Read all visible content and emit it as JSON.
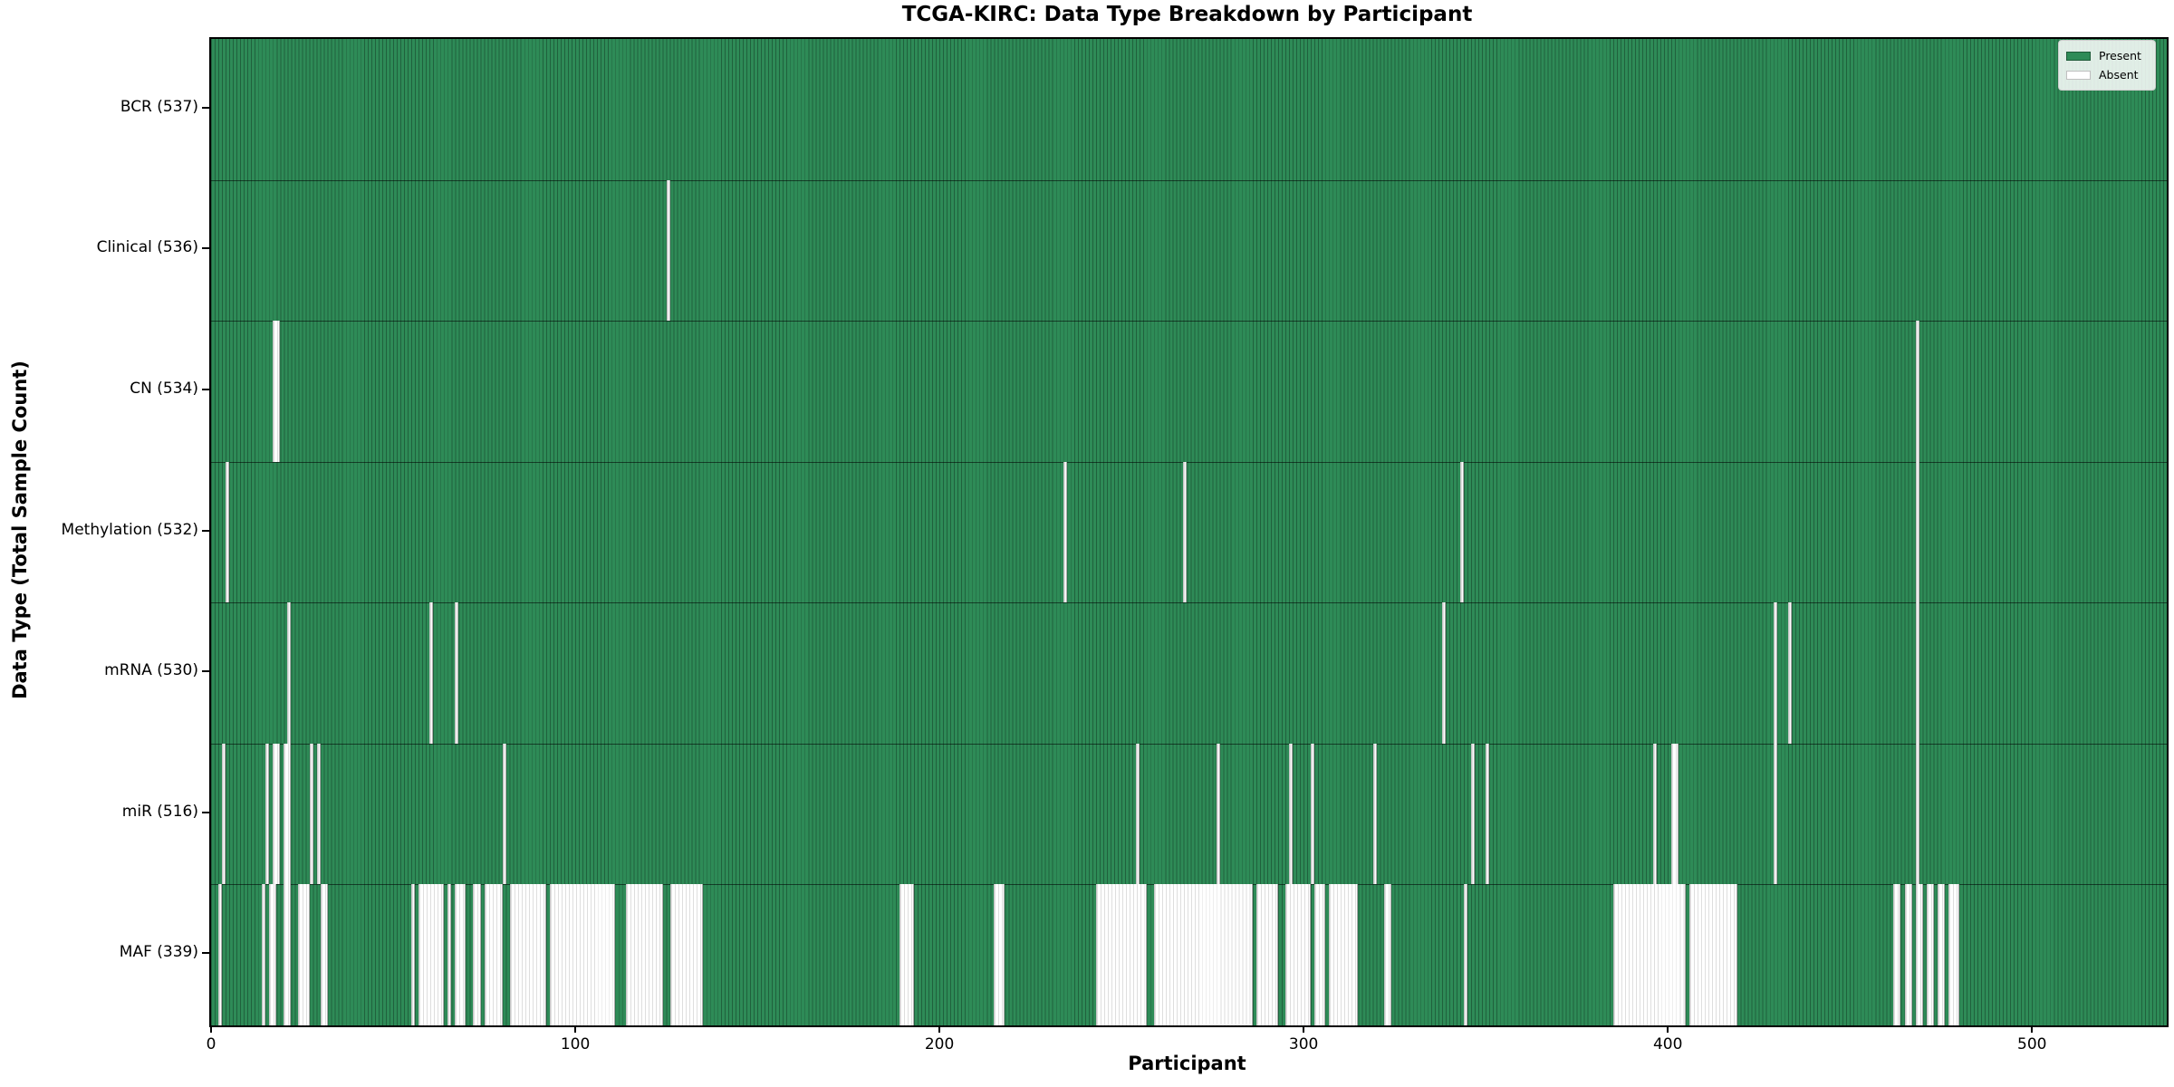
{
  "title": "TCGA-KIRC: Data Type Breakdown by Participant",
  "xlabel": "Participant",
  "ylabel": "Data Type (Total Sample Count)",
  "legend": {
    "present_label": "Present",
    "absent_label": "Absent"
  },
  "colors": {
    "present": "#2e8b57",
    "absent": "#ffffff",
    "bar_edge": "rgba(0,0,0,0.30)",
    "absent_edge": "rgba(0,0,0,0.13)"
  },
  "chart_data": {
    "type": "heatmap",
    "title": "TCGA-KIRC: Data Type Breakdown by Participant",
    "xlabel": "Participant",
    "ylabel": "Data Type (Total Sample Count)",
    "n_participants": 537,
    "x_ticks": [
      0,
      100,
      200,
      300,
      400,
      500
    ],
    "xlim": [
      -0.5,
      536.5
    ],
    "grid": false,
    "legend_position": "upper right",
    "legend_entries": [
      {
        "label": "Present",
        "color": "#2e8b57"
      },
      {
        "label": "Absent",
        "color": "#ffffff"
      }
    ],
    "rows": [
      {
        "label": "BCR (537)",
        "name": "BCR",
        "present": 537,
        "absent_ranges": []
      },
      {
        "label": "Clinical (536)",
        "name": "Clinical",
        "present": 536,
        "absent_ranges": [
          [
            125,
            125
          ]
        ]
      },
      {
        "label": "CN (534)",
        "name": "CN",
        "present": 534,
        "absent_ranges": [
          [
            17,
            18
          ],
          [
            468,
            468
          ]
        ]
      },
      {
        "label": "Methylation (532)",
        "name": "Methylation",
        "present": 532,
        "absent_ranges": [
          [
            4,
            4
          ],
          [
            234,
            234
          ],
          [
            267,
            267
          ],
          [
            343,
            343
          ],
          [
            468,
            468
          ]
        ]
      },
      {
        "label": "mRNA (530)",
        "name": "mRNA",
        "present": 530,
        "absent_ranges": [
          [
            21,
            21
          ],
          [
            60,
            60
          ],
          [
            67,
            67
          ],
          [
            338,
            338
          ],
          [
            429,
            429
          ],
          [
            433,
            433
          ],
          [
            468,
            468
          ]
        ]
      },
      {
        "label": "miR (516)",
        "name": "miR",
        "present": 516,
        "absent_ranges": [
          [
            3,
            3
          ],
          [
            15,
            15
          ],
          [
            17,
            18
          ],
          [
            20,
            21
          ],
          [
            27,
            27
          ],
          [
            29,
            29
          ],
          [
            80,
            80
          ],
          [
            254,
            254
          ],
          [
            276,
            276
          ],
          [
            296,
            296
          ],
          [
            302,
            302
          ],
          [
            319,
            319
          ],
          [
            346,
            346
          ],
          [
            350,
            350
          ],
          [
            396,
            396
          ],
          [
            401,
            402
          ],
          [
            429,
            429
          ],
          [
            468,
            468
          ]
        ]
      },
      {
        "label": "MAF (339)",
        "name": "MAF",
        "present": 339,
        "absent_ranges": [
          [
            2,
            2
          ],
          [
            14,
            14
          ],
          [
            16,
            17
          ],
          [
            20,
            21
          ],
          [
            24,
            26
          ],
          [
            30,
            31
          ],
          [
            55,
            55
          ],
          [
            57,
            63
          ],
          [
            65,
            65
          ],
          [
            67,
            69
          ],
          [
            72,
            73
          ],
          [
            75,
            79
          ],
          [
            82,
            91
          ],
          [
            93,
            110
          ],
          [
            114,
            123
          ],
          [
            126,
            134
          ],
          [
            189,
            192
          ],
          [
            215,
            217
          ],
          [
            243,
            256
          ],
          [
            259,
            285
          ],
          [
            287,
            292
          ],
          [
            295,
            301
          ],
          [
            303,
            305
          ],
          [
            307,
            314
          ],
          [
            322,
            323
          ],
          [
            344,
            344
          ],
          [
            385,
            404
          ],
          [
            406,
            418
          ],
          [
            462,
            463
          ],
          [
            465,
            466
          ],
          [
            468,
            469
          ],
          [
            471,
            472
          ],
          [
            474,
            475
          ],
          [
            477,
            479
          ]
        ]
      }
    ]
  }
}
